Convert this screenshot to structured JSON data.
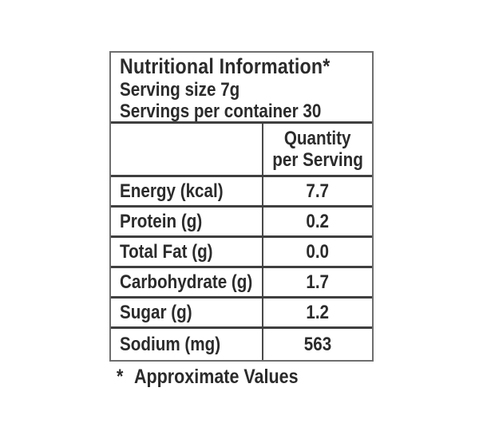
{
  "label": {
    "title": "Nutritional Information*",
    "serving_size": "Serving size 7g",
    "servings_per_container": "Servings per container 30",
    "column_header": {
      "line1": "Quantity",
      "line2": "per Serving"
    },
    "rows": [
      {
        "name": "Energy (kcal)",
        "value": "7.7"
      },
      {
        "name": "Protein (g)",
        "value": "0.2"
      },
      {
        "name": "Total Fat (g)",
        "value": "0.0"
      },
      {
        "name": "Carbohydrate (g)",
        "value": "1.7"
      },
      {
        "name": "Sugar (g)",
        "value": "1.2"
      },
      {
        "name": "Sodium (mg)",
        "value": "563"
      }
    ],
    "footnote_marker": "*",
    "footnote_text": "Approximate Values",
    "colors": {
      "text": "#2b2b2b",
      "outer_border": "#6e6e6e",
      "inner_border": "#3f3f3f",
      "background": "#ffffff"
    }
  }
}
